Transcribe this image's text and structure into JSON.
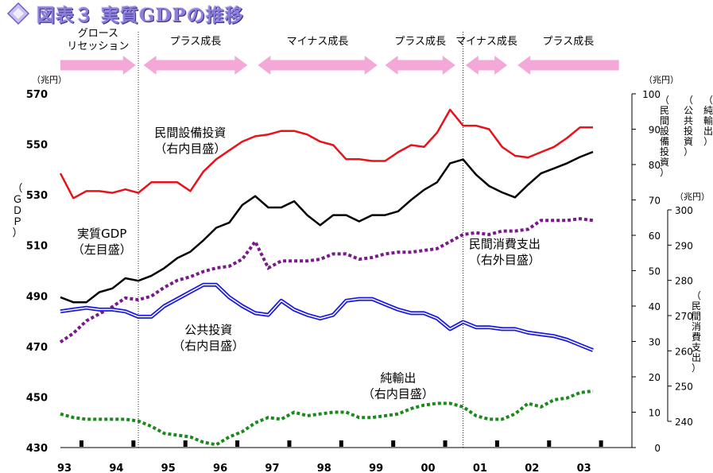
{
  "title": "図表３ 実質GDPの推移",
  "colors": {
    "gdp": "#000000",
    "private_capex": "#e8121a",
    "private_consumption": "#7a1a8a",
    "public_investment": "#1a1ae0",
    "net_exports": "#1a8a1a",
    "phase_arrow": "#f4a8d8"
  },
  "phases": [
    {
      "label": "グロース\nリセッション",
      "direction": "right",
      "from": 1993.0,
      "to": 1994.45
    },
    {
      "label": "プラス成長",
      "direction": "both",
      "from": 1994.6,
      "to": 1996.6
    },
    {
      "label": "マイナス成長",
      "direction": "both",
      "from": 1996.8,
      "to": 1999.1
    },
    {
      "label": "プラス成長",
      "direction": "both",
      "from": 1999.25,
      "to": 2000.6
    },
    {
      "label": "マイナス成長",
      "direction": "both",
      "from": 2000.8,
      "to": 2001.6
    },
    {
      "label": "プラス成長",
      "direction": "left",
      "from": 2001.8,
      "to": 2003.75
    }
  ],
  "annotations": [
    {
      "text": "民間設備投資\n（右内目盛）",
      "series": "private_capex",
      "x": 1995.5,
      "y": 553
    },
    {
      "text": "実質GDP\n（左目盛）",
      "series": "gdp",
      "x": 1993.8,
      "y": 513
    },
    {
      "text": "民間消費支出\n（右外目盛）",
      "series": "private_consumption",
      "x": 2001.55,
      "y": 509
    },
    {
      "text": "公共投資\n（右内目盛）",
      "series": "public_investment",
      "x": 1995.85,
      "y": 475
    },
    {
      "text": "純輸出\n（右内目盛）",
      "series": "net_exports",
      "x": 1999.5,
      "y": 456
    }
  ],
  "chart_data": {
    "type": "line",
    "title": "図表３ 実質GDPの推移",
    "x_tick_labels": [
      "93",
      "94",
      "95",
      "96",
      "97",
      "98",
      "99",
      "00",
      "01",
      "02",
      "03"
    ],
    "x_ticks": [
      1993,
      1994,
      1995,
      1996,
      1997,
      1998,
      1999,
      2000,
      2001,
      2002,
      2003
    ],
    "xlim": [
      1993.0,
      2004.0
    ],
    "dividers": [
      1994.5,
      2000.75
    ],
    "left_axis": {
      "unit": "（兆円）",
      "label": "（ＧＤＰ）",
      "ylim": [
        430,
        570
      ],
      "ticks": [
        430,
        450,
        470,
        490,
        510,
        530,
        550,
        570
      ]
    },
    "right_inner_axis": {
      "unit": "（兆円）",
      "labels": [
        "（民間設備投資）",
        "（公共投資）",
        "（純輸出）"
      ],
      "ylim": [
        0,
        100
      ],
      "ticks": [
        0,
        10,
        20,
        30,
        40,
        50,
        60,
        70,
        80,
        90,
        100
      ]
    },
    "right_outer_axis": {
      "unit": "（兆円）",
      "label": "（民間消費支出）",
      "ylim": [
        240,
        300
      ],
      "ticks": [
        240,
        250,
        260,
        270,
        280,
        290,
        300
      ]
    },
    "series": [
      {
        "key": "gdp",
        "name": "実質GDP",
        "axis": "left",
        "style": "solid",
        "x": [
          1993.0,
          1993.25,
          1993.5,
          1993.75,
          1994.0,
          1994.25,
          1994.5,
          1994.75,
          1995.0,
          1995.25,
          1995.5,
          1995.75,
          1996.0,
          1996.25,
          1996.5,
          1996.75,
          1997.0,
          1997.25,
          1997.5,
          1997.75,
          1998.0,
          1998.25,
          1998.5,
          1998.75,
          1999.0,
          1999.25,
          1999.5,
          1999.75,
          2000.0,
          2000.25,
          2000.5,
          2000.75,
          2001.0,
          2001.25,
          2001.5,
          2001.75,
          2002.0,
          2002.25,
          2002.5,
          2002.75,
          2003.0,
          2003.25
        ],
        "y": [
          489.5,
          487.5,
          487.5,
          491.5,
          493,
          497,
          496,
          498,
          501,
          505,
          507.5,
          512,
          517,
          519,
          526,
          529.5,
          525,
          525,
          527.5,
          522,
          518,
          522,
          522,
          519.5,
          522,
          522,
          523.5,
          528,
          532,
          535,
          542.5,
          544,
          538,
          533.5,
          531,
          529,
          534,
          538.5,
          540.5,
          542.5,
          545,
          547
        ]
      },
      {
        "key": "private_capex",
        "name": "民間設備投資",
        "axis": "right_inner",
        "style": "solid",
        "x": [
          1993.0,
          1993.25,
          1993.5,
          1993.75,
          1994.0,
          1994.25,
          1994.5,
          1994.75,
          1995.0,
          1995.25,
          1995.5,
          1995.75,
          1996.0,
          1996.25,
          1996.5,
          1996.75,
          1997.0,
          1997.25,
          1997.5,
          1997.75,
          1998.0,
          1998.25,
          1998.5,
          1998.75,
          1999.0,
          1999.25,
          1999.5,
          1999.75,
          2000.0,
          2000.25,
          2000.5,
          2000.75,
          2001.0,
          2001.25,
          2001.5,
          2001.75,
          2002.0,
          2002.25,
          2002.5,
          2002.75,
          2003.0,
          2003.25
        ],
        "y": [
          77.5,
          70.5,
          72.5,
          72.5,
          72,
          73,
          72,
          75,
          75,
          75,
          72.5,
          78,
          81.5,
          84,
          86.5,
          88,
          88.5,
          89.5,
          89.5,
          88.5,
          86.5,
          85.5,
          81.5,
          81.5,
          81,
          81,
          83.5,
          85.5,
          85,
          89,
          95.5,
          91,
          91,
          90,
          85,
          82.5,
          82,
          83.5,
          85,
          87.5,
          90.5,
          90.5
        ]
      },
      {
        "key": "private_consumption",
        "name": "民間消費支出",
        "axis": "right_outer",
        "style": "dotted",
        "x": [
          1993.0,
          1993.25,
          1993.5,
          1993.75,
          1994.0,
          1994.25,
          1994.5,
          1994.75,
          1995.0,
          1995.25,
          1995.5,
          1995.75,
          1996.0,
          1996.25,
          1996.5,
          1996.75,
          1997.0,
          1997.25,
          1997.5,
          1997.75,
          1998.0,
          1998.25,
          1998.5,
          1998.75,
          1999.0,
          1999.25,
          1999.5,
          1999.75,
          2000.0,
          2000.25,
          2000.5,
          2000.75,
          2001.0,
          2001.25,
          2001.5,
          2001.75,
          2002.0,
          2002.25,
          2002.5,
          2002.75,
          2003.0,
          2003.25
        ],
        "y": [
          262.5,
          265,
          268.5,
          270.5,
          272.5,
          275,
          274.5,
          275.5,
          278,
          280,
          281,
          282.5,
          283.5,
          284,
          286,
          291,
          283.5,
          285.5,
          285.5,
          285.5,
          286,
          287.5,
          287.5,
          286,
          286.5,
          287.5,
          288,
          288,
          288.5,
          289,
          291,
          293,
          293.5,
          293,
          294,
          294,
          294.5,
          297,
          297,
          297,
          297.5,
          297
        ]
      },
      {
        "key": "public_investment",
        "name": "公共投資",
        "axis": "right_inner",
        "style": "double",
        "x": [
          1993.0,
          1993.25,
          1993.5,
          1993.75,
          1994.0,
          1994.25,
          1994.5,
          1994.75,
          1995.0,
          1995.25,
          1995.5,
          1995.75,
          1996.0,
          1996.25,
          1996.5,
          1996.75,
          1997.0,
          1997.25,
          1997.5,
          1997.75,
          1998.0,
          1998.25,
          1998.5,
          1998.75,
          1999.0,
          1999.25,
          1999.5,
          1999.75,
          2000.0,
          2000.25,
          2000.5,
          2000.75,
          2001.0,
          2001.25,
          2001.5,
          2001.75,
          2002.0,
          2002.25,
          2002.5,
          2002.75,
          2003.0,
          2003.25
        ],
        "y": [
          38.5,
          39,
          39.5,
          39,
          39,
          38.5,
          37,
          37,
          40,
          42,
          44,
          46,
          46,
          42.5,
          40,
          38,
          37.5,
          41.5,
          39,
          37.5,
          36.5,
          37.5,
          41.5,
          42,
          42,
          40.5,
          39,
          38,
          38,
          36.5,
          33.5,
          35.5,
          34,
          34,
          33.5,
          33.5,
          32.5,
          32,
          31.5,
          30.5,
          29,
          27.5
        ]
      },
      {
        "key": "net_exports",
        "name": "純輸出",
        "axis": "right_inner",
        "style": "dotted",
        "x": [
          1993.0,
          1993.25,
          1993.5,
          1993.75,
          1994.0,
          1994.25,
          1994.5,
          1994.75,
          1995.0,
          1995.25,
          1995.5,
          1995.75,
          1996.0,
          1996.25,
          1996.5,
          1996.75,
          1997.0,
          1997.25,
          1997.5,
          1997.75,
          1998.0,
          1998.25,
          1998.5,
          1998.75,
          1999.0,
          1999.25,
          1999.5,
          1999.75,
          2000.0,
          2000.25,
          2000.5,
          2000.75,
          2001.0,
          2001.25,
          2001.5,
          2001.75,
          2002.0,
          2002.25,
          2002.5,
          2002.75,
          2003.0,
          2003.25
        ],
        "y": [
          9.5,
          8.5,
          8,
          8,
          8,
          8,
          7.5,
          6,
          4,
          3.5,
          3,
          1.5,
          0.8,
          3,
          4.5,
          7,
          8.5,
          8,
          10,
          9,
          9.5,
          10,
          10,
          8.5,
          8.5,
          9,
          9.5,
          11,
          12,
          12.5,
          12.5,
          11.5,
          9,
          8,
          8,
          9.5,
          12.5,
          11.5,
          13.5,
          14,
          15.5,
          16
        ]
      }
    ]
  }
}
